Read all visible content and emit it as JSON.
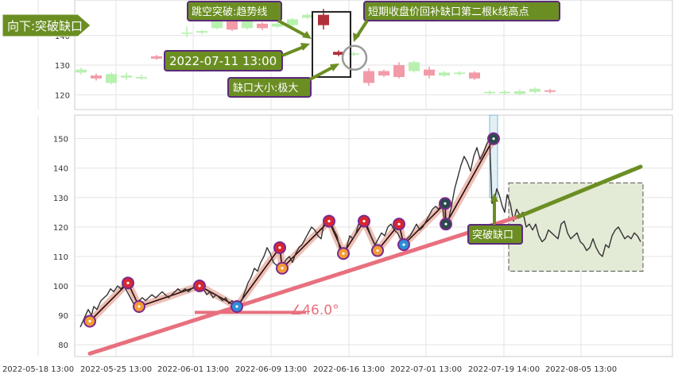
{
  "chart_data": [
    {
      "type": "candlestick",
      "panel": "top",
      "ylim": [
        115,
        152
      ],
      "yticks": [
        120,
        130,
        140
      ],
      "grid": true,
      "candles": [
        {
          "x": 102,
          "open": 127.5,
          "close": 128.5,
          "high": 129.2,
          "low": 126.8
        },
        {
          "x": 121,
          "open": 126.5,
          "close": 125.5,
          "high": 127.2,
          "low": 124.8
        },
        {
          "x": 140,
          "open": 124.0,
          "close": 127.0,
          "high": 127.5,
          "low": 123.5
        },
        {
          "x": 159,
          "open": 125.8,
          "close": 126.5,
          "high": 127.5,
          "low": 125.0
        },
        {
          "x": 178,
          "open": 125.5,
          "close": 126.0,
          "high": 126.8,
          "low": 125.0
        },
        {
          "x": 197,
          "open": 133.0,
          "close": 132.2,
          "high": 133.5,
          "low": 131.8
        },
        {
          "x": 216,
          "open": 134.2,
          "close": 133.8,
          "high": 134.6,
          "low": 133.2
        },
        {
          "x": 235,
          "open": 141.0,
          "close": 141.0,
          "high": 143.0,
          "low": 139.5
        },
        {
          "x": 254,
          "open": 141.0,
          "close": 141.5,
          "high": 142.0,
          "low": 140.5
        },
        {
          "x": 273,
          "open": 142.5,
          "close": 145.5,
          "high": 146.0,
          "low": 142.0
        },
        {
          "x": 292,
          "open": 146.0,
          "close": 142.0,
          "high": 147.0,
          "low": 141.5
        },
        {
          "x": 311,
          "open": 142.5,
          "close": 145.0,
          "high": 145.5,
          "low": 142.0
        },
        {
          "x": 330,
          "open": 144.0,
          "close": 142.5,
          "high": 144.5,
          "low": 141.8
        },
        {
          "x": 349,
          "open": 143.0,
          "close": 144.0,
          "high": 144.5,
          "low": 142.5
        },
        {
          "x": 368,
          "open": 143.5,
          "close": 145.5,
          "high": 146.0,
          "low": 143.0
        },
        {
          "x": 387,
          "open": 146.0,
          "close": 147.0,
          "high": 147.5,
          "low": 145.5
        },
        {
          "x": 407,
          "open": 147.0,
          "close": 143.5,
          "high": 149.0,
          "low": 142.0
        },
        {
          "x": 426,
          "open": 133.5,
          "close": 134.5,
          "high": 135.0,
          "low": 133.0
        },
        {
          "x": 445,
          "open": 133.5,
          "close": 134.0,
          "high": 134.5,
          "low": 133.0
        },
        {
          "x": 464,
          "open": 128.0,
          "close": 124.0,
          "high": 129.0,
          "low": 123.0
        },
        {
          "x": 483,
          "open": 128.0,
          "close": 126.5,
          "high": 128.5,
          "low": 126.0
        },
        {
          "x": 502,
          "open": 130.0,
          "close": 126.0,
          "high": 131.0,
          "low": 125.5
        },
        {
          "x": 521,
          "open": 128.0,
          "close": 131.0,
          "high": 131.5,
          "low": 127.5
        },
        {
          "x": 540,
          "open": 128.5,
          "close": 126.5,
          "high": 129.5,
          "low": 125.5
        },
        {
          "x": 559,
          "open": 126.5,
          "close": 127.5,
          "high": 128.0,
          "low": 126.0
        },
        {
          "x": 578,
          "open": 127.0,
          "close": 127.5,
          "high": 128.0,
          "low": 126.5
        },
        {
          "x": 597,
          "open": 127.5,
          "close": 125.5,
          "high": 128.0,
          "low": 125.0
        },
        {
          "x": 616,
          "open": 120.5,
          "close": 121.0,
          "high": 121.5,
          "low": 120.0
        },
        {
          "x": 635,
          "open": 120.5,
          "close": 121.0,
          "high": 121.5,
          "low": 120.0
        },
        {
          "x": 654,
          "open": 120.3,
          "close": 121.2,
          "high": 121.8,
          "low": 119.8
        },
        {
          "x": 673,
          "open": 121.0,
          "close": 122.0,
          "high": 122.5,
          "low": 120.5
        },
        {
          "x": 692,
          "open": 121.5,
          "close": 121.0,
          "high": 122.0,
          "low": 120.5
        }
      ],
      "box": {
        "x0": 393,
        "x1": 441,
        "y0": 148.0,
        "y1": 126.0
      },
      "circle": {
        "cx": 446,
        "cy": 132.5
      }
    },
    {
      "type": "line",
      "panel": "bottom",
      "ylim": [
        76,
        158
      ],
      "yticks": [
        80,
        90,
        100,
        110,
        120,
        130,
        140,
        150
      ],
      "xticks": [
        "2022-05-18 13:00",
        "2022-05-25 13:00",
        "2022-06-01 13:00",
        "2022-06-09 13:00",
        "2022-06-16 13:00",
        "2022-07-01 13:00",
        "2022-07-19 14:00",
        "2022-08-05 13:00"
      ],
      "xtick_px": [
        48,
        146,
        243,
        341,
        439,
        536,
        634,
        731
      ],
      "grid": true,
      "price": [
        [
          101,
          86
        ],
        [
          106,
          89
        ],
        [
          111,
          92
        ],
        [
          115,
          90
        ],
        [
          118,
          93
        ],
        [
          122,
          92
        ],
        [
          127,
          95
        ],
        [
          131,
          96
        ],
        [
          135,
          97
        ],
        [
          139,
          99
        ],
        [
          143,
          98
        ],
        [
          148,
          100
        ],
        [
          152,
          99
        ],
        [
          156,
          100
        ],
        [
          160,
          98
        ],
        [
          164,
          96
        ],
        [
          168,
          94
        ],
        [
          171,
          93
        ],
        [
          175,
          95
        ],
        [
          179,
          96
        ],
        [
          183,
          95
        ],
        [
          187,
          96
        ],
        [
          191,
          97
        ],
        [
          196,
          96
        ],
        [
          200,
          97
        ],
        [
          204,
          98
        ],
        [
          208,
          97
        ],
        [
          212,
          96
        ],
        [
          216,
          97
        ],
        [
          220,
          98
        ],
        [
          224,
          99
        ],
        [
          228,
          98
        ],
        [
          233,
          99
        ],
        [
          237,
          98
        ],
        [
          241,
          99
        ],
        [
          245,
          100
        ],
        [
          249,
          101
        ],
        [
          253,
          100
        ],
        [
          256,
          99
        ],
        [
          260,
          97
        ],
        [
          264,
          98
        ],
        [
          268,
          96
        ],
        [
          272,
          97
        ],
        [
          276,
          96
        ],
        [
          280,
          95
        ],
        [
          284,
          96
        ],
        [
          288,
          94
        ],
        [
          292,
          95
        ],
        [
          296,
          93
        ],
        [
          300,
          94
        ],
        [
          304,
          95
        ],
        [
          308,
          98
        ],
        [
          312,
          101
        ],
        [
          316,
          103
        ],
        [
          320,
          106
        ],
        [
          324,
          105
        ],
        [
          328,
          108
        ],
        [
          332,
          110
        ],
        [
          336,
          113
        ],
        [
          340,
          111
        ],
        [
          344,
          108
        ],
        [
          348,
          107
        ],
        [
          352,
          105
        ],
        [
          356,
          107
        ],
        [
          360,
          109
        ],
        [
          364,
          110
        ],
        [
          368,
          108
        ],
        [
          372,
          111
        ],
        [
          376,
          113
        ],
        [
          380,
          114
        ],
        [
          384,
          116
        ],
        [
          388,
          118
        ],
        [
          392,
          120
        ],
        [
          396,
          119
        ],
        [
          400,
          117
        ],
        [
          404,
          116
        ],
        [
          408,
          122
        ],
        [
          412,
          121
        ],
        [
          416,
          122
        ],
        [
          420,
          119
        ],
        [
          424,
          117
        ],
        [
          428,
          112
        ],
        [
          432,
          111
        ],
        [
          436,
          113
        ],
        [
          440,
          117
        ],
        [
          444,
          116
        ],
        [
          448,
          118
        ],
        [
          452,
          122
        ],
        [
          456,
          121
        ],
        [
          460,
          122
        ],
        [
          464,
          119
        ],
        [
          468,
          116
        ],
        [
          472,
          114
        ],
        [
          476,
          116
        ],
        [
          480,
          118
        ],
        [
          484,
          117
        ],
        [
          488,
          120
        ],
        [
          492,
          121
        ],
        [
          496,
          119
        ],
        [
          500,
          118
        ],
        [
          504,
          116
        ],
        [
          508,
          114
        ],
        [
          512,
          116
        ],
        [
          516,
          117
        ],
        [
          520,
          119
        ],
        [
          524,
          121
        ],
        [
          528,
          119
        ],
        [
          532,
          120
        ],
        [
          536,
          122
        ],
        [
          540,
          124
        ],
        [
          544,
          126
        ],
        [
          548,
          127
        ],
        [
          552,
          126
        ],
        [
          556,
          128
        ],
        [
          560,
          121
        ],
        [
          564,
          122
        ],
        [
          568,
          127
        ],
        [
          572,
          133
        ],
        [
          576,
          137
        ],
        [
          580,
          141
        ],
        [
          584,
          144
        ],
        [
          588,
          142
        ],
        [
          592,
          139
        ],
        [
          596,
          144
        ],
        [
          600,
          147
        ],
        [
          604,
          143
        ],
        [
          608,
          145
        ],
        [
          612,
          148
        ],
        [
          616,
          150
        ],
        [
          619,
          128
        ],
        [
          622,
          129
        ],
        [
          625,
          133
        ],
        [
          628,
          131
        ],
        [
          632,
          127
        ],
        [
          635,
          125
        ],
        [
          638,
          131
        ],
        [
          642,
          128
        ],
        [
          646,
          122
        ],
        [
          650,
          126
        ],
        [
          654,
          124
        ],
        [
          658,
          125
        ],
        [
          662,
          120
        ],
        [
          666,
          121
        ],
        [
          670,
          119
        ],
        [
          674,
          121
        ],
        [
          678,
          117
        ],
        [
          682,
          115
        ],
        [
          686,
          116
        ],
        [
          690,
          119
        ],
        [
          694,
          118
        ],
        [
          698,
          117
        ],
        [
          702,
          116
        ],
        [
          706,
          121
        ],
        [
          710,
          122
        ],
        [
          714,
          118
        ],
        [
          718,
          116
        ],
        [
          722,
          117
        ],
        [
          726,
          118
        ],
        [
          730,
          115
        ],
        [
          734,
          114
        ],
        [
          738,
          112
        ],
        [
          742,
          113
        ],
        [
          746,
          116
        ],
        [
          750,
          113
        ],
        [
          754,
          111
        ],
        [
          758,
          110
        ],
        [
          762,
          114
        ],
        [
          766,
          113
        ],
        [
          770,
          117
        ],
        [
          774,
          119
        ],
        [
          778,
          120
        ],
        [
          782,
          118
        ],
        [
          786,
          116
        ],
        [
          790,
          117
        ],
        [
          794,
          116
        ],
        [
          798,
          118
        ],
        [
          802,
          117
        ],
        [
          806,
          115
        ]
      ],
      "zigzag": [
        [
          113,
          88
        ],
        [
          161,
          101
        ],
        [
          175,
          93
        ],
        [
          251,
          100
        ],
        [
          298,
          93
        ],
        [
          352,
          113
        ],
        [
          355,
          106
        ],
        [
          414,
          122
        ],
        [
          432,
          111
        ],
        [
          458,
          122
        ],
        [
          475,
          112
        ],
        [
          502,
          121
        ],
        [
          508,
          114
        ],
        [
          560,
          128
        ],
        [
          561,
          121
        ],
        [
          621,
          150
        ]
      ],
      "markers": [
        {
          "x": 113,
          "y": 88,
          "type": "down"
        },
        {
          "x": 161,
          "y": 101,
          "type": "up"
        },
        {
          "x": 175,
          "y": 93,
          "type": "down"
        },
        {
          "x": 251,
          "y": 100,
          "type": "up"
        },
        {
          "x": 298,
          "y": 93,
          "type": "low"
        },
        {
          "x": 352,
          "y": 113,
          "type": "up"
        },
        {
          "x": 355,
          "y": 106,
          "type": "down"
        },
        {
          "x": 414,
          "y": 122,
          "type": "up"
        },
        {
          "x": 432,
          "y": 111,
          "type": "down"
        },
        {
          "x": 458,
          "y": 122,
          "type": "up"
        },
        {
          "x": 475,
          "y": 112,
          "type": "down"
        },
        {
          "x": 502,
          "y": 121,
          "type": "up"
        },
        {
          "x": 508,
          "y": 114,
          "type": "low"
        },
        {
          "x": 560,
          "y": 128,
          "type": "dark"
        },
        {
          "x": 561,
          "y": 121,
          "type": "dark"
        },
        {
          "x": 621,
          "y": 150,
          "type": "dark"
        }
      ],
      "trendline": [
        [
          113,
          77
        ],
        [
          652,
          123.5
        ]
      ],
      "trend_extension": [
        [
          652,
          123.5
        ],
        [
          806,
          140.5
        ]
      ],
      "angle_line": [
        [
          245,
          91
        ],
        [
          385,
          91
        ]
      ],
      "angle_label": "∠46.0°",
      "projection_box": {
        "x0": 640,
        "x1": 809,
        "y_top": 135,
        "y_bottom": 105
      },
      "gap_band": {
        "x0": 616,
        "x1": 626,
        "y_top": 158,
        "y_bottom": 130
      }
    }
  ],
  "annotations": {
    "direction_label": "向下:突破缺口",
    "gap_breakout_label": "跳空突破:趋势线",
    "high_point_label": "短期收盘价回补缺口第二根k线高点",
    "datetime_label": "2022-07-11 13:00",
    "gap_size_label": "缺口大小:极大",
    "breakout_gap_label": "突破缺口"
  },
  "colors": {
    "up_candle": "#f29aa8",
    "down_candle": "#b8f0b0",
    "dark_candle": "#b0303a",
    "trendline": "#e8707e",
    "extension": "#6b8e23",
    "callout_fill": "#6b8e23",
    "callout_border": "#5a2a7a",
    "zigzag_light": "#d9a0c0",
    "zigzag_peach": "#e9b4a8",
    "price_line": "#333333",
    "marker_orange": "#f39c34",
    "marker_red": "#d9262e",
    "marker_blue": "#2a8fd8",
    "marker_dark": "#2a4a4a",
    "marker_border": "#7b2a8e"
  }
}
